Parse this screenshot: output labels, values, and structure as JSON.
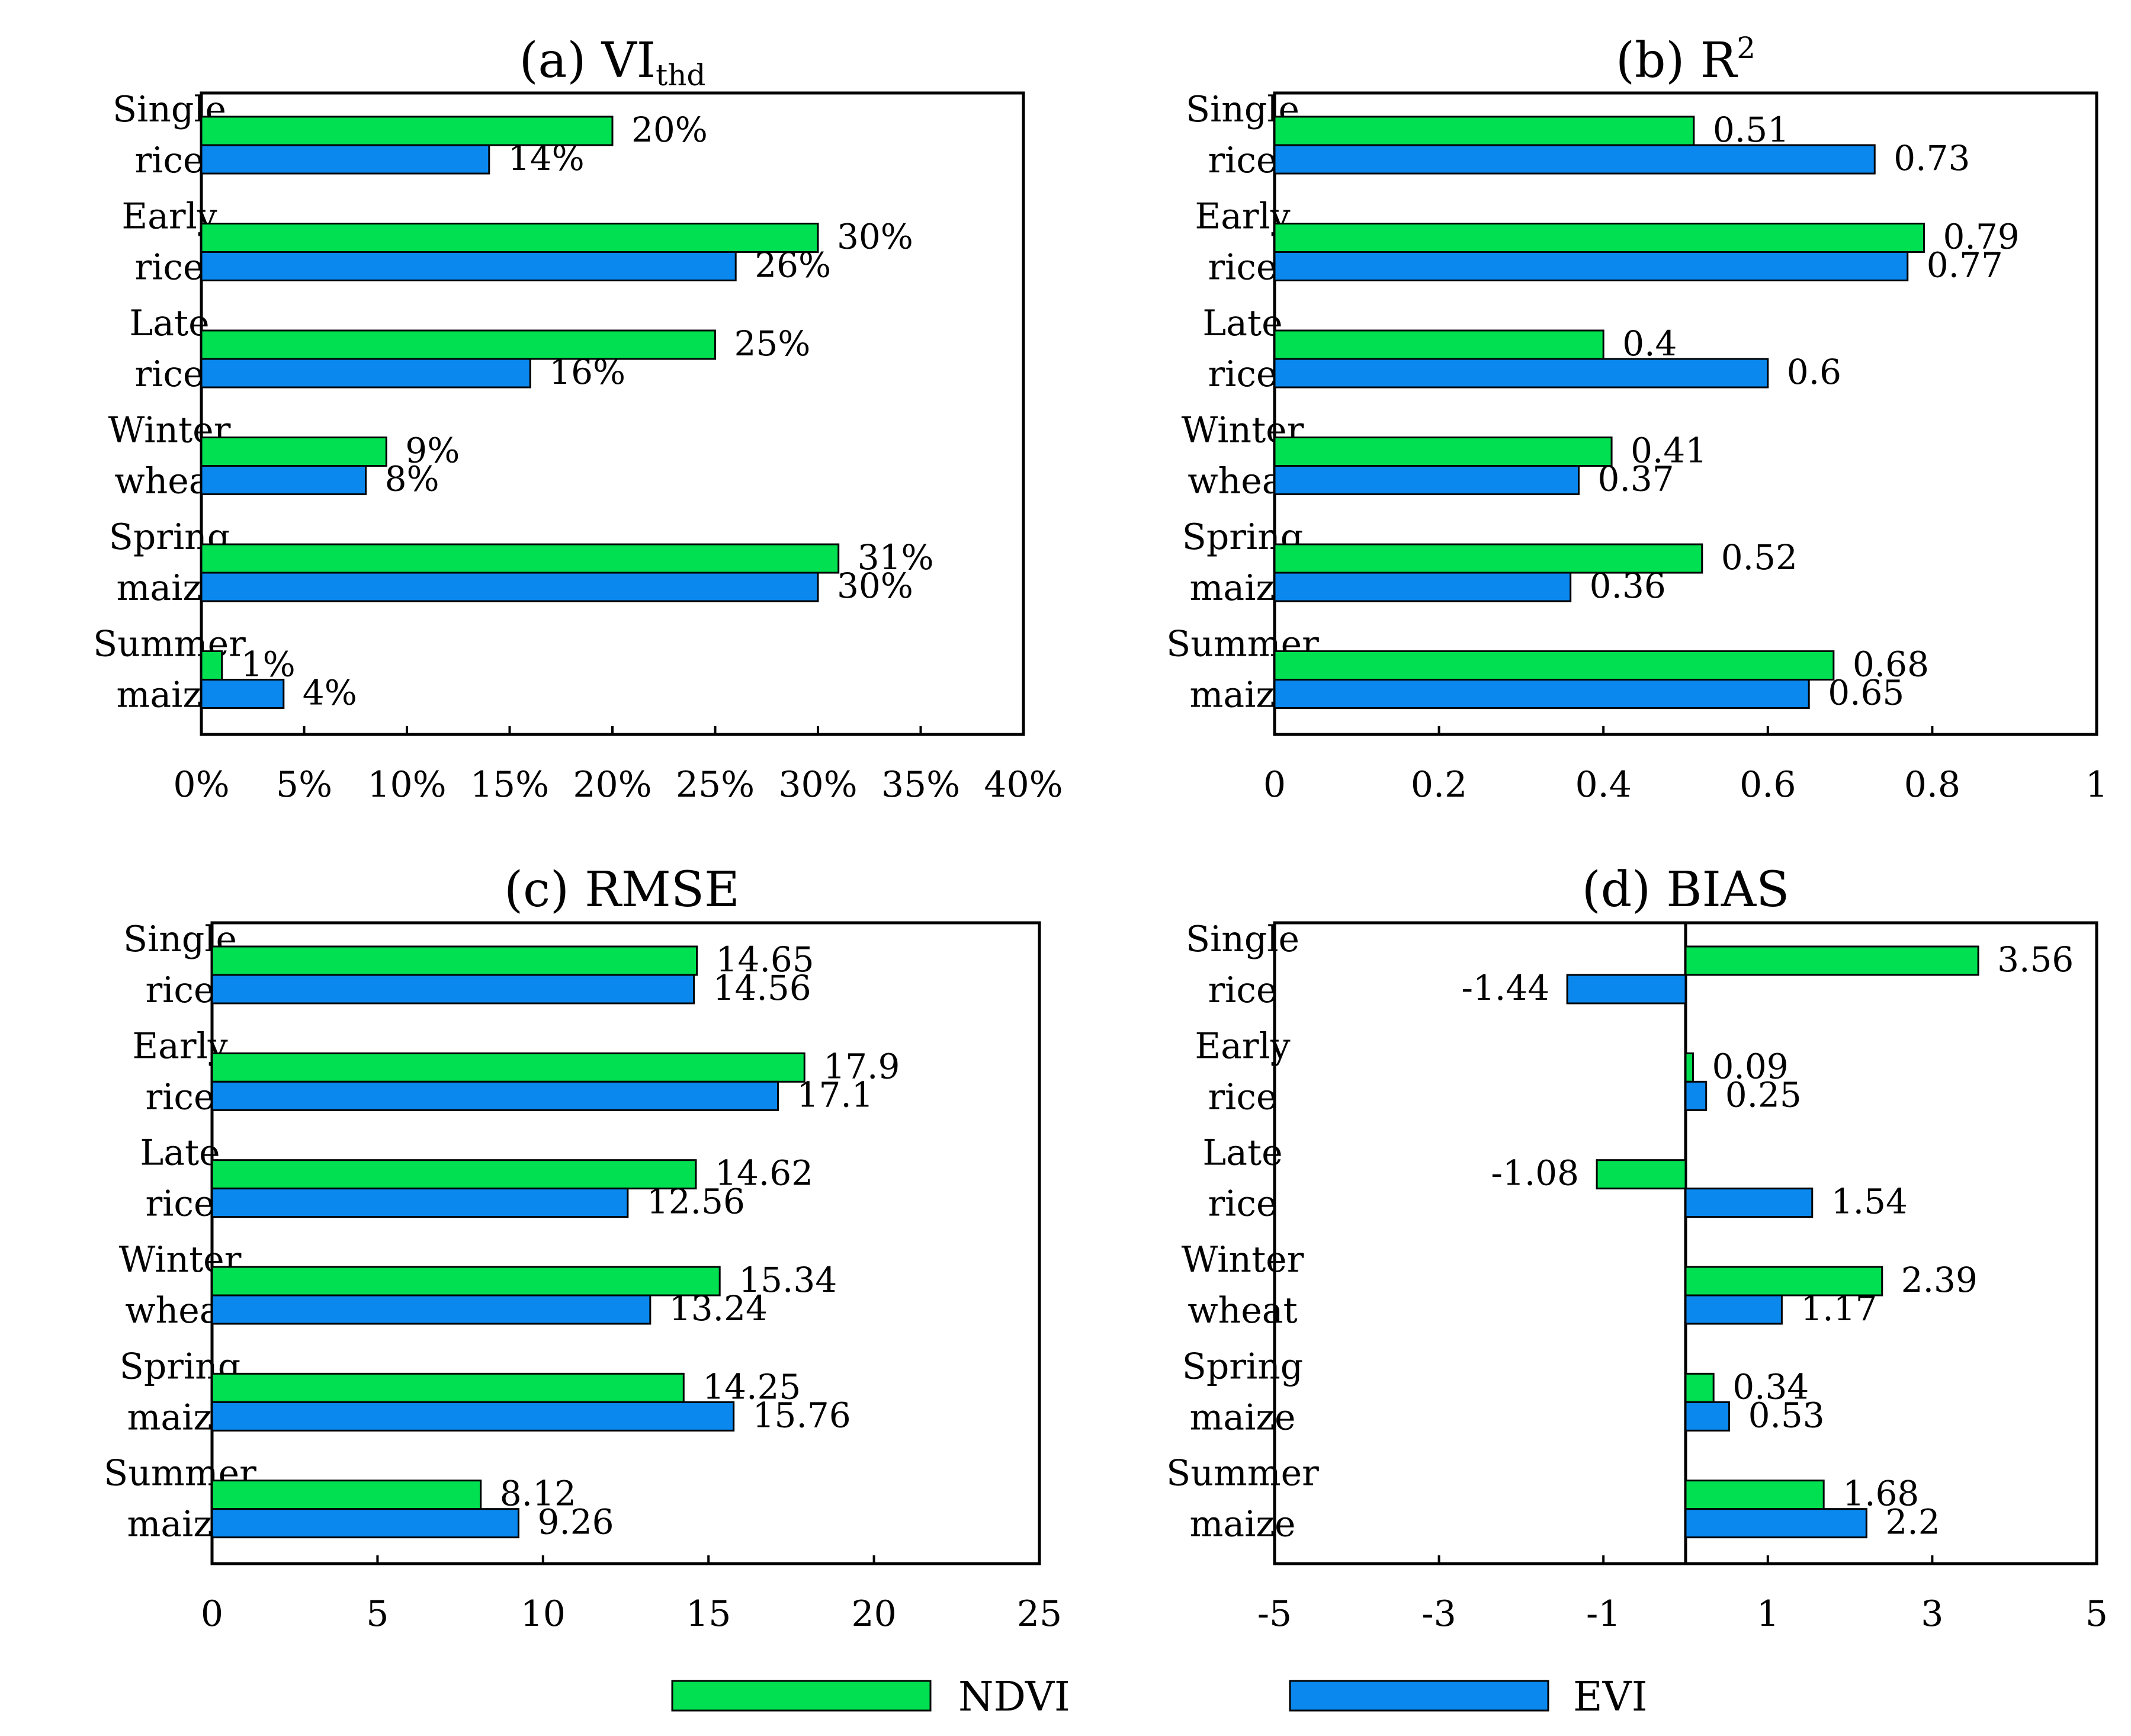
{
  "colors": {
    "ndvi": "#00e050",
    "evi": "#0a88ee",
    "stroke": "#000000"
  },
  "legend": {
    "ndvi": "NDVI",
    "evi": "EVI"
  },
  "chart_data": [
    {
      "id": "a",
      "type": "bar",
      "orientation": "horizontal",
      "title": "(a)  VI",
      "title_sub": "thd",
      "categories": [
        [
          "Single",
          "rice"
        ],
        [
          "Early",
          "rice"
        ],
        [
          "Late",
          "rice"
        ],
        [
          "Winter",
          "wheat"
        ],
        [
          "Spring",
          "maize"
        ],
        [
          "Summer",
          "maize"
        ]
      ],
      "series": [
        {
          "name": "NDVI",
          "values": [
            20,
            30,
            25,
            9,
            31,
            1
          ],
          "labels": [
            "20%",
            "30%",
            "25%",
            "9%",
            "31%",
            "1%"
          ]
        },
        {
          "name": "EVI",
          "values": [
            14,
            26,
            16,
            8,
            30,
            4
          ],
          "labels": [
            "14%",
            "26%",
            "16%",
            "8%",
            "30%",
            "4%"
          ]
        }
      ],
      "xlim": [
        0,
        40
      ],
      "xticks": [
        0,
        5,
        10,
        15,
        20,
        25,
        30,
        35,
        40
      ],
      "xtick_labels": [
        "0%",
        "5%",
        "10%",
        "15%",
        "20%",
        "25%",
        "30%",
        "35%",
        "40%"
      ]
    },
    {
      "id": "b",
      "type": "bar",
      "orientation": "horizontal",
      "title": "(b)  R",
      "title_sup": "2",
      "categories": [
        [
          "Single",
          "rice"
        ],
        [
          "Early",
          "rice"
        ],
        [
          "Late",
          "rice"
        ],
        [
          "Winter",
          "wheat"
        ],
        [
          "Spring",
          "maize"
        ],
        [
          "Summer",
          "maize"
        ]
      ],
      "series": [
        {
          "name": "NDVI",
          "values": [
            0.51,
            0.79,
            0.4,
            0.41,
            0.52,
            0.68
          ],
          "labels": [
            "0.51",
            "0.79",
            "0.4",
            "0.41",
            "0.52",
            "0.68"
          ]
        },
        {
          "name": "EVI",
          "values": [
            0.73,
            0.77,
            0.6,
            0.37,
            0.36,
            0.65
          ],
          "labels": [
            "0.73",
            "0.77",
            "0.6",
            "0.37",
            "0.36",
            "0.65"
          ]
        }
      ],
      "xlim": [
        0,
        1
      ],
      "xticks": [
        0,
        0.2,
        0.4,
        0.6,
        0.8,
        1
      ],
      "xtick_labels": [
        "0",
        "0.2",
        "0.4",
        "0.6",
        "0.8",
        "1"
      ]
    },
    {
      "id": "c",
      "type": "bar",
      "orientation": "horizontal",
      "title": "(c)  RMSE",
      "categories": [
        [
          "Single",
          "rice"
        ],
        [
          "Early",
          "rice"
        ],
        [
          "Late",
          "rice"
        ],
        [
          "Winter",
          "wheat"
        ],
        [
          "Spring",
          "maize"
        ],
        [
          "Summer",
          "maize"
        ]
      ],
      "series": [
        {
          "name": "NDVI",
          "values": [
            14.65,
            17.9,
            14.62,
            15.34,
            14.25,
            8.12
          ],
          "labels": [
            "14.65",
            "17.9",
            "14.62",
            "15.34",
            "14.25",
            "8.12"
          ]
        },
        {
          "name": "EVI",
          "values": [
            14.56,
            17.1,
            12.56,
            13.24,
            15.76,
            9.26
          ],
          "labels": [
            "14.56",
            "17.1",
            "12.56",
            "13.24",
            "15.76",
            "9.26"
          ]
        }
      ],
      "xlim": [
        0,
        25
      ],
      "xticks": [
        0,
        5,
        10,
        15,
        20,
        25
      ],
      "xtick_labels": [
        "0",
        "5",
        "10",
        "15",
        "20",
        "25"
      ]
    },
    {
      "id": "d",
      "type": "bar",
      "orientation": "horizontal",
      "title": "(d)  BIAS",
      "categories": [
        [
          "Single",
          "rice"
        ],
        [
          "Early",
          "rice"
        ],
        [
          "Late",
          "rice"
        ],
        [
          "Winter",
          "wheat"
        ],
        [
          "Spring",
          "maize"
        ],
        [
          "Summer",
          "maize"
        ]
      ],
      "series": [
        {
          "name": "NDVI",
          "values": [
            3.56,
            0.09,
            -1.08,
            2.39,
            0.34,
            1.68
          ],
          "labels": [
            "3.56",
            "0.09",
            "-1.08",
            "2.39",
            "0.34",
            "1.68"
          ]
        },
        {
          "name": "EVI",
          "values": [
            -1.44,
            0.25,
            1.54,
            1.17,
            0.53,
            2.2
          ],
          "labels": [
            "-1.44",
            "0.25",
            "1.54",
            "1.17",
            "0.53",
            "2.2"
          ]
        }
      ],
      "xlim": [
        -5,
        5
      ],
      "xticks": [
        -5,
        -3,
        -1,
        1,
        3,
        5
      ],
      "xtick_labels": [
        "-5",
        "-3",
        "-1",
        "1",
        "3",
        "5"
      ]
    }
  ]
}
